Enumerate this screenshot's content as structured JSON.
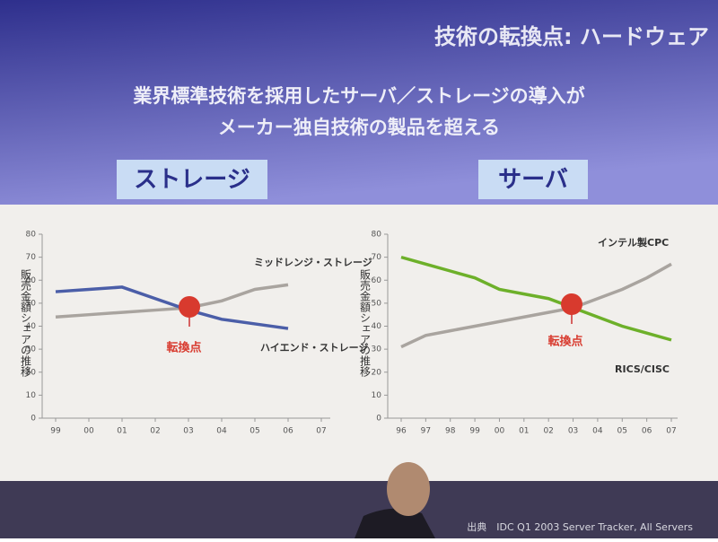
{
  "slide": {
    "title": "技術の転換点: ハードウェア",
    "subtitle": [
      "業界標準技術を採用したサーバ／ストレージの導入が",
      "メーカー独自技術の製品を超える"
    ],
    "sections": [
      "ストレージ",
      "サーバ"
    ],
    "source": "出典　IDC Q1 2003 Server Tracker,  All Servers"
  },
  "chart_data": [
    {
      "type": "line",
      "ylabel": "販売金額シェアの推移",
      "annotation": "転換点",
      "categories": [
        "99",
        "00",
        "01",
        "02",
        "03",
        "04",
        "05",
        "06",
        "07"
      ],
      "ylim": [
        0,
        80
      ],
      "yticks": [
        0,
        10,
        20,
        30,
        40,
        50,
        60,
        70,
        80
      ],
      "series": [
        {
          "name": "ミッドレンジ・ストレージ",
          "color": "#a9a49f",
          "values": [
            44,
            45,
            46,
            47,
            48,
            51,
            56,
            58,
            null
          ]
        },
        {
          "name": "ハイエンド・ストレージ",
          "color": "#4b5ea8",
          "values": [
            55,
            56,
            57,
            52,
            47,
            43,
            41,
            39,
            null
          ]
        }
      ]
    },
    {
      "type": "line",
      "ylabel": "販売金額シェアの推移",
      "annotation": "転換点",
      "categories": [
        "96",
        "97",
        "98",
        "99",
        "00",
        "01",
        "02",
        "03",
        "04",
        "05",
        "06",
        "07"
      ],
      "ylim": [
        0,
        80
      ],
      "yticks": [
        0,
        10,
        20,
        30,
        40,
        50,
        60,
        70,
        80
      ],
      "series": [
        {
          "name": "インテル製CPC",
          "color": "#a9a49f",
          "values": [
            31,
            36,
            38,
            40,
            42,
            44,
            46,
            48,
            52,
            56,
            61,
            67
          ]
        },
        {
          "name": "RICS/CISC",
          "color": "#6db02a",
          "values": [
            70,
            67,
            64,
            61,
            56,
            54,
            52,
            48,
            44,
            40,
            37,
            34
          ]
        }
      ]
    }
  ]
}
